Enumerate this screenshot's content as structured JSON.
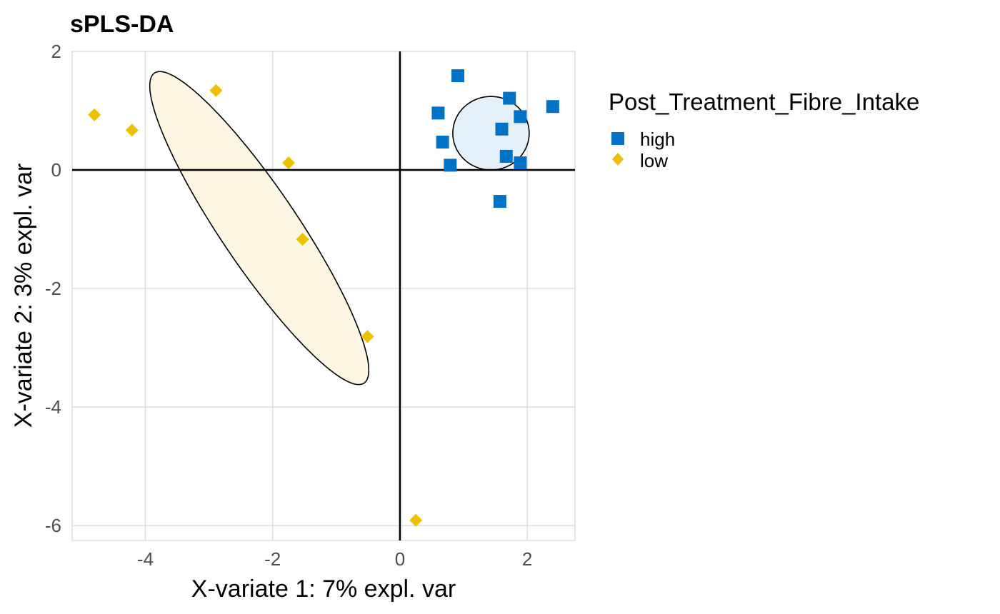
{
  "chart_data": {
    "type": "scatter",
    "title": "sPLS-DA",
    "xlabel": "X-variate 1: 7% expl. var",
    "ylabel": "X-variate 2: 3% expl. var",
    "xlim": [
      -5.15,
      2.75
    ],
    "ylim": [
      -6.25,
      2.0
    ],
    "xticks": [
      -4,
      -2,
      0,
      2
    ],
    "yticks": [
      2,
      0,
      -2,
      -4,
      -6
    ],
    "grid": true,
    "reference_lines": {
      "x": 0,
      "y": 0
    },
    "legend": {
      "title": "Post_Treatment_Fibre_Intake",
      "placement": "right"
    },
    "series": [
      {
        "name": "high",
        "marker": "square",
        "color": "#0072C6",
        "points": [
          [
            0.91,
            1.59
          ],
          [
            0.6,
            0.96
          ],
          [
            0.67,
            0.47
          ],
          [
            0.79,
            0.08
          ],
          [
            1.72,
            1.21
          ],
          [
            1.89,
            0.9
          ],
          [
            1.6,
            0.69
          ],
          [
            1.67,
            0.23
          ],
          [
            1.89,
            0.12
          ],
          [
            2.4,
            1.07
          ],
          [
            1.57,
            -0.53
          ]
        ],
        "ellipse": {
          "center": [
            1.43,
            0.62
          ],
          "fill": "#E6F0F8",
          "radius_x": 0.6,
          "radius_y": 0.62,
          "angle_deg": 0
        }
      },
      {
        "name": "low",
        "marker": "diamond",
        "color": "#EFC000",
        "points": [
          [
            -4.8,
            0.93
          ],
          [
            -4.21,
            0.67
          ],
          [
            -2.89,
            1.34
          ],
          [
            -1.75,
            0.12
          ],
          [
            -1.53,
            -1.17
          ],
          [
            -0.51,
            -2.81
          ],
          [
            0.25,
            -5.91
          ]
        ],
        "ellipse": {
          "center": [
            -2.21,
            -0.98
          ],
          "fill": "#FCF6E3",
          "axis_major": [
            1.64,
            -2.62
          ],
          "axis_minor": [
            0.52,
            0.33
          ]
        }
      }
    ]
  }
}
